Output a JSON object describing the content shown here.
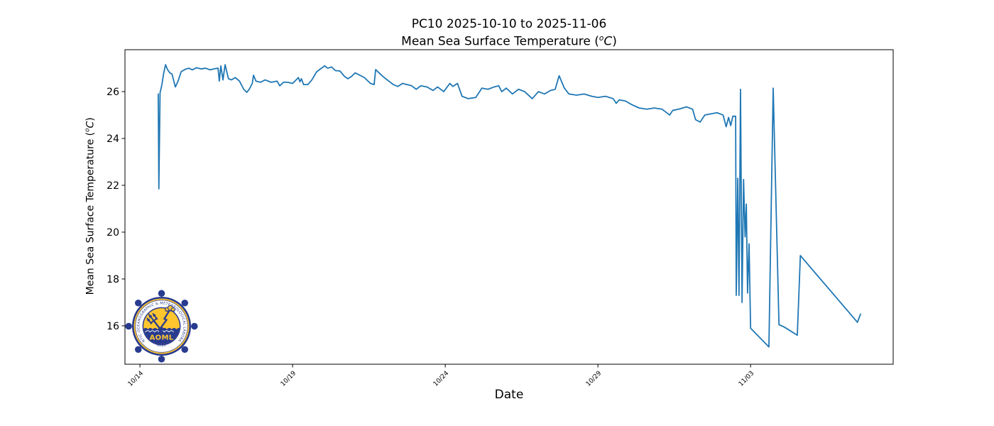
{
  "figure": {
    "background": "#ffffff"
  },
  "chart_data": {
    "type": "line",
    "title": "PC10 2025-10-10 to 2025-11-06",
    "subtitle": {
      "prefix": "Mean Sea Surface Temperature (",
      "sup": "o",
      "unit": "C",
      "suffix": ")"
    },
    "xlabel": "Date",
    "ylabel": {
      "prefix": "Mean Sea Surface Temperature (",
      "sup": "o",
      "unit": "C",
      "suffix": ")"
    },
    "line_color": "#1f77b4",
    "grid": false,
    "legend": "none",
    "x_axis": {
      "unit": "days since 2025-10-14 00:00",
      "lim": [
        -0.49,
        24.67
      ],
      "ticks": [
        {
          "pos": 0,
          "label": "10/14"
        },
        {
          "pos": 5,
          "label": "10/19"
        },
        {
          "pos": 10,
          "label": "10/24"
        },
        {
          "pos": 15,
          "label": "10/29"
        },
        {
          "pos": 20,
          "label": "11/03"
        }
      ]
    },
    "y_axis": {
      "lim": [
        14.36,
        27.79
      ],
      "ticks": [
        16,
        18,
        20,
        22,
        24,
        26
      ]
    },
    "series": [
      {
        "name": "Mean Sea Surface Temperature",
        "points": [
          [
            0.6,
            25.9
          ],
          [
            0.62,
            21.85
          ],
          [
            0.66,
            25.95
          ],
          [
            0.72,
            26.3
          ],
          [
            0.78,
            26.8
          ],
          [
            0.84,
            27.15
          ],
          [
            0.9,
            26.95
          ],
          [
            0.98,
            26.8
          ],
          [
            1.05,
            26.75
          ],
          [
            1.16,
            26.2
          ],
          [
            1.25,
            26.45
          ],
          [
            1.35,
            26.85
          ],
          [
            1.48,
            26.95
          ],
          [
            1.6,
            27.0
          ],
          [
            1.72,
            26.93
          ],
          [
            1.85,
            27.02
          ],
          [
            2.0,
            26.97
          ],
          [
            2.15,
            27.0
          ],
          [
            2.3,
            26.93
          ],
          [
            2.45,
            26.98
          ],
          [
            2.56,
            27.0
          ],
          [
            2.6,
            26.45
          ],
          [
            2.65,
            27.1
          ],
          [
            2.72,
            26.5
          ],
          [
            2.79,
            27.15
          ],
          [
            2.9,
            26.55
          ],
          [
            3.0,
            26.5
          ],
          [
            3.12,
            26.6
          ],
          [
            3.26,
            26.45
          ],
          [
            3.4,
            26.1
          ],
          [
            3.5,
            25.97
          ],
          [
            3.58,
            26.1
          ],
          [
            3.68,
            26.35
          ],
          [
            3.72,
            26.7
          ],
          [
            3.8,
            26.45
          ],
          [
            3.95,
            26.4
          ],
          [
            4.1,
            26.5
          ],
          [
            4.3,
            26.4
          ],
          [
            4.49,
            26.45
          ],
          [
            4.58,
            26.25
          ],
          [
            4.7,
            26.4
          ],
          [
            4.84,
            26.4
          ],
          [
            5.0,
            26.35
          ],
          [
            5.19,
            26.6
          ],
          [
            5.24,
            26.42
          ],
          [
            5.29,
            26.55
          ],
          [
            5.36,
            26.3
          ],
          [
            5.5,
            26.3
          ],
          [
            5.63,
            26.5
          ],
          [
            5.79,
            26.85
          ],
          [
            6.0,
            27.05
          ],
          [
            6.05,
            27.1
          ],
          [
            6.15,
            27.0
          ],
          [
            6.28,
            27.05
          ],
          [
            6.4,
            26.9
          ],
          [
            6.55,
            26.88
          ],
          [
            6.7,
            26.65
          ],
          [
            6.81,
            26.55
          ],
          [
            6.93,
            26.65
          ],
          [
            7.05,
            26.8
          ],
          [
            7.2,
            26.7
          ],
          [
            7.35,
            26.6
          ],
          [
            7.55,
            26.35
          ],
          [
            7.67,
            26.3
          ],
          [
            7.72,
            26.94
          ],
          [
            7.85,
            26.78
          ],
          [
            8.0,
            26.6
          ],
          [
            8.15,
            26.45
          ],
          [
            8.3,
            26.3
          ],
          [
            8.45,
            26.22
          ],
          [
            8.6,
            26.35
          ],
          [
            8.75,
            26.3
          ],
          [
            8.9,
            26.25
          ],
          [
            9.05,
            26.1
          ],
          [
            9.2,
            26.25
          ],
          [
            9.4,
            26.2
          ],
          [
            9.6,
            26.05
          ],
          [
            9.75,
            26.2
          ],
          [
            9.95,
            26.0
          ],
          [
            10.15,
            26.35
          ],
          [
            10.25,
            26.22
          ],
          [
            10.4,
            26.35
          ],
          [
            10.55,
            25.8
          ],
          [
            10.75,
            25.7
          ],
          [
            11.0,
            25.75
          ],
          [
            11.2,
            26.15
          ],
          [
            11.4,
            26.1
          ],
          [
            11.6,
            26.2
          ],
          [
            11.75,
            26.25
          ],
          [
            11.85,
            26.0
          ],
          [
            12.0,
            26.15
          ],
          [
            12.2,
            25.9
          ],
          [
            12.4,
            26.1
          ],
          [
            12.6,
            26.0
          ],
          [
            12.85,
            25.7
          ],
          [
            13.05,
            26.0
          ],
          [
            13.25,
            25.9
          ],
          [
            13.45,
            26.05
          ],
          [
            13.6,
            26.1
          ],
          [
            13.73,
            26.68
          ],
          [
            13.9,
            26.15
          ],
          [
            14.05,
            25.9
          ],
          [
            14.3,
            25.85
          ],
          [
            14.55,
            25.9
          ],
          [
            14.8,
            25.8
          ],
          [
            15.0,
            25.75
          ],
          [
            15.25,
            25.8
          ],
          [
            15.5,
            25.7
          ],
          [
            15.6,
            25.5
          ],
          [
            15.7,
            25.65
          ],
          [
            15.9,
            25.6
          ],
          [
            16.1,
            25.45
          ],
          [
            16.35,
            25.3
          ],
          [
            16.6,
            25.25
          ],
          [
            16.85,
            25.3
          ],
          [
            17.1,
            25.25
          ],
          [
            17.35,
            25.0
          ],
          [
            17.45,
            25.2
          ],
          [
            17.65,
            25.25
          ],
          [
            17.9,
            25.35
          ],
          [
            18.1,
            25.25
          ],
          [
            18.2,
            24.8
          ],
          [
            18.35,
            24.7
          ],
          [
            18.5,
            25.0
          ],
          [
            18.7,
            25.05
          ],
          [
            18.9,
            25.1
          ],
          [
            19.1,
            25.0
          ],
          [
            19.2,
            24.5
          ],
          [
            19.28,
            24.9
          ],
          [
            19.35,
            24.55
          ],
          [
            19.42,
            24.95
          ],
          [
            19.51,
            24.95
          ],
          [
            19.53,
            17.3
          ],
          [
            19.58,
            22.3
          ],
          [
            19.62,
            17.3
          ],
          [
            19.67,
            26.1
          ],
          [
            19.72,
            17.0
          ],
          [
            19.77,
            22.25
          ],
          [
            19.82,
            19.8
          ],
          [
            19.86,
            21.2
          ],
          [
            19.9,
            17.4
          ],
          [
            19.95,
            19.5
          ],
          [
            20.0,
            15.9
          ],
          [
            20.6,
            15.1
          ],
          [
            20.74,
            26.15
          ],
          [
            20.93,
            16.05
          ],
          [
            21.1,
            15.95
          ],
          [
            21.53,
            15.6
          ],
          [
            21.63,
            19.0
          ],
          [
            23.5,
            16.15
          ],
          [
            23.6,
            16.5
          ]
        ]
      }
    ]
  },
  "logo": {
    "ring_text": "ATLANTIC OCEANOGRAPHIC & METEOROLOGICAL LABORATORY",
    "bottom_text": "NOAA",
    "acronym": "AOML",
    "colors": {
      "navy": "#283b8f",
      "gold": "#ffc52f",
      "white": "#ffffff"
    }
  }
}
